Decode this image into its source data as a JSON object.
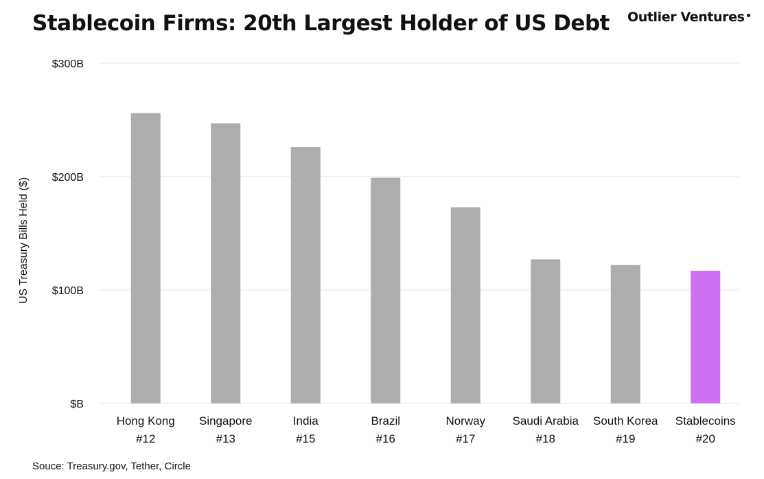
{
  "title": "Stablecoin Firms: 20th Largest Holder of US Debt",
  "brand": "Outlier Ventures",
  "source": "Souce: Treasury.gov, Tether, Circle",
  "colors": {
    "bar": "#adadad",
    "highlight": "#cc6ff0",
    "grid": "#e6e6e6",
    "text": "#111111"
  },
  "chart_data": {
    "type": "bar",
    "ylabel": "US Treasury Bills Held ($)",
    "ylim": [
      0,
      300
    ],
    "yticks": [
      0,
      100,
      200,
      300
    ],
    "ytick_labels": [
      "$B",
      "$100B",
      "$200B",
      "$300B"
    ],
    "grid": true,
    "categories": [
      "Hong Kong",
      "Singapore",
      "India",
      "Brazil",
      "Norway",
      "Saudi Arabia",
      "South Korea",
      "Stablecoins"
    ],
    "ranks": [
      "#12",
      "#13",
      "#15",
      "#16",
      "#17",
      "#18",
      "#19",
      "#20"
    ],
    "values": [
      256,
      247,
      226,
      199,
      173,
      127,
      122,
      117
    ],
    "highlight_index": 7
  }
}
